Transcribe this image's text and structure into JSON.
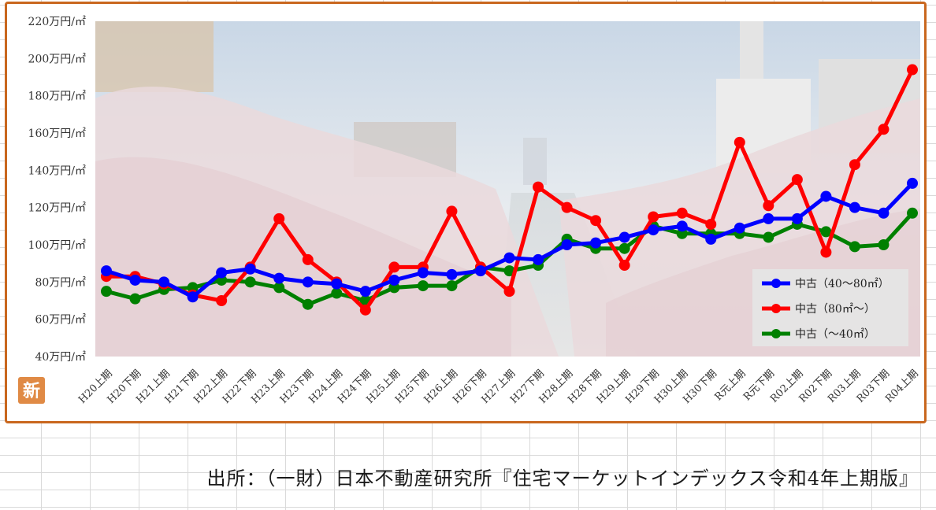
{
  "chart_data": {
    "type": "line",
    "y_tick_labels": [
      "220万円/㎡",
      "200万円/㎡",
      "180万円/㎡",
      "160万円/㎡",
      "140万円/㎡",
      "120万円/㎡",
      "100万円/㎡",
      "80万円/㎡",
      "60万円/㎡",
      "40万円/㎡"
    ],
    "ylim": [
      40,
      220
    ],
    "grid": false,
    "legend_position": "bottom-right",
    "categories": [
      "H20上期",
      "H20下期",
      "H21上期",
      "H21下期",
      "H22上期",
      "H22下期",
      "H23上期",
      "H23下期",
      "H24上期",
      "H24下期",
      "H25上期",
      "H25下期",
      "H26上期",
      "H26下期",
      "H27上期",
      "H27下期",
      "H28上期",
      "H28下期",
      "H29上期",
      "H29下期",
      "H30上期",
      "H30下期",
      "R元上期",
      "R元下期",
      "R02上期",
      "R02下期",
      "R03上期",
      "R03下期",
      "R04上期"
    ],
    "series": [
      {
        "name": "中古（40～80㎡）",
        "color": "#0000ff",
        "values": [
          86,
          81,
          80,
          72,
          85,
          87,
          82,
          80,
          79,
          75,
          81,
          85,
          84,
          86,
          93,
          92,
          100,
          101,
          104,
          108,
          110,
          103,
          109,
          114,
          114,
          126,
          120,
          117,
          133
        ]
      },
      {
        "name": "中古（80㎡～）",
        "color": "#ff0000",
        "values": [
          83,
          83,
          79,
          73,
          70,
          88,
          114,
          92,
          80,
          65,
          88,
          88,
          118,
          88,
          75,
          131,
          120,
          113,
          89,
          115,
          117,
          111,
          155,
          121,
          135,
          96,
          143,
          162,
          194
        ]
      },
      {
        "name": "中古（～40㎡）",
        "color": "#008000",
        "values": [
          75,
          71,
          76,
          77,
          81,
          80,
          77,
          68,
          74,
          70,
          77,
          78,
          78,
          88,
          86,
          89,
          103,
          98,
          98,
          110,
          106,
          106,
          106,
          104,
          111,
          107,
          99,
          100,
          117
        ]
      }
    ]
  },
  "source_note": "出所：（一財）日本不動産研究所『住宅マーケットインデックス令和4年上期版』",
  "badge": "新"
}
